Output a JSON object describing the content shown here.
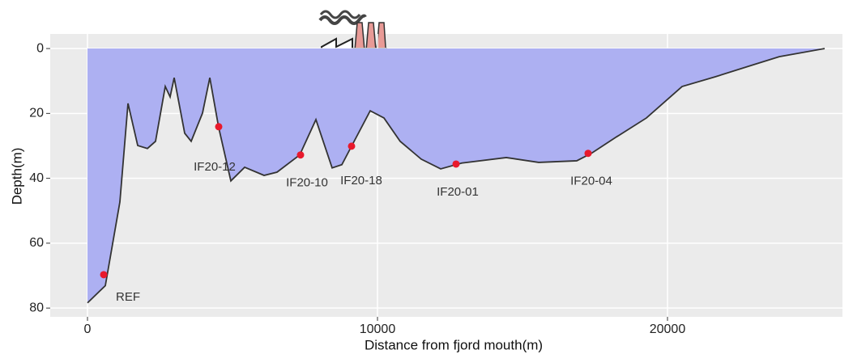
{
  "chart_data": {
    "type": "area",
    "xlabel": "Distance from fjord mouth(m)",
    "ylabel": "Depth(m)",
    "xlim": [
      -1285,
      26034
    ],
    "ylim": [
      -4.5,
      82.7
    ],
    "y_inverted": true,
    "xticks": [
      0,
      10000,
      20000
    ],
    "yticks": [
      0,
      20,
      40,
      60,
      80
    ],
    "grid": true,
    "series": [
      {
        "color": "#adb0f2",
        "line_color": "#333333",
        "x": [
          0,
          615,
          1117,
          1397,
          1732,
          2067,
          2346,
          2682,
          2849,
          2989,
          3352,
          3575,
          3966,
          4218,
          4525,
          4944,
          5419,
          6089,
          6536,
          7318,
          7877,
          8436,
          8771,
          9106,
          9749,
          10223,
          10782,
          11508,
          12179,
          12905,
          14441,
          15559,
          16872,
          17374,
          18212,
          19274,
          20503,
          21648,
          22961,
          23855,
          25419
        ],
        "values": [
          78.4,
          73.1,
          47.3,
          16.9,
          29.9,
          30.8,
          28.6,
          11.7,
          14.9,
          9.0,
          26.1,
          28.6,
          19.9,
          9.0,
          24.4,
          40.8,
          36.6,
          39.1,
          38.1,
          32.8,
          21.9,
          36.8,
          35.8,
          30.1,
          19.2,
          21.4,
          28.6,
          34.1,
          37.1,
          35.3,
          33.6,
          35.1,
          34.6,
          32.3,
          27.4,
          21.4,
          11.7,
          8.7,
          5.0,
          2.5,
          0
        ]
      }
    ],
    "stations": {
      "color": "#e8192c",
      "names": [
        "REF",
        "IF20-12",
        "IF20-10",
        "IF20-18",
        "IF20-01",
        "IF20-04"
      ],
      "x": [
        559,
        4525,
        7346,
        9106,
        12709,
        17263
      ],
      "values": [
        69.7,
        24.1,
        32.8,
        30.1,
        35.6,
        32.3
      ]
    }
  }
}
